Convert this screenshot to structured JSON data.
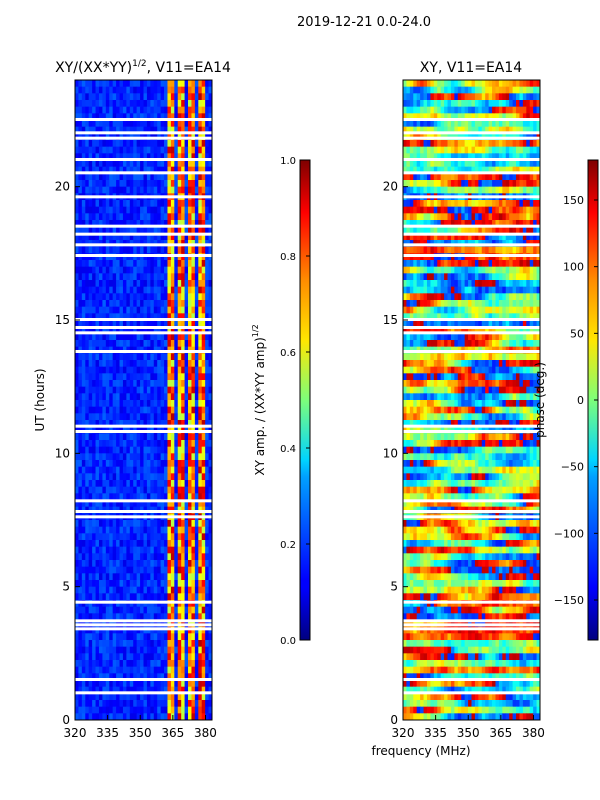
{
  "figure": {
    "suptitle": "2019-12-21 0.0-24.0"
  },
  "chart_data": [
    {
      "type": "heatmap",
      "title_main": "XY/(XX*YY)",
      "title_sup": "1/2",
      "title_rest": ", V11=EA14",
      "ylabel": "UT (hours)",
      "xlabel": "",
      "xlim": [
        320,
        383
      ],
      "ylim": [
        0,
        24
      ],
      "xticks": [
        "320",
        "335",
        "350",
        "365",
        "380"
      ],
      "xtick_values": [
        320,
        335,
        350,
        365,
        380
      ],
      "yticks": [
        "0",
        "5",
        "10",
        "15",
        "20"
      ],
      "ytick_values": [
        0,
        5,
        10,
        15,
        20
      ],
      "colorbar": {
        "label_main": "XY amp. / (XX*YY amp)",
        "label_sup": "1/2",
        "range": [
          0.0,
          1.0
        ],
        "ticks": [
          "0.0",
          "0.2",
          "0.4",
          "0.6",
          "0.8",
          "1.0"
        ],
        "tick_values": [
          0.0,
          0.2,
          0.4,
          0.6,
          0.8,
          1.0
        ]
      }
    },
    {
      "type": "heatmap",
      "title_main": "XY, V11=EA14",
      "xlabel": "frequency (MHz)",
      "xlim": [
        320,
        383
      ],
      "ylim": [
        0,
        24
      ],
      "xticks": [
        "320",
        "335",
        "350",
        "365",
        "380"
      ],
      "xtick_values": [
        320,
        335,
        350,
        365,
        380
      ],
      "yticks": [
        "0",
        "5",
        "10",
        "15",
        "20"
      ],
      "ytick_values": [
        0,
        5,
        10,
        15,
        20
      ],
      "colorbar": {
        "label_main": "phase (deg.)",
        "range": [
          -180,
          180
        ],
        "ticks": [
          "−150",
          "−100",
          "−50",
          "0",
          "50",
          "100",
          "150"
        ],
        "tick_values": [
          -150,
          -100,
          -50,
          0,
          50,
          100,
          150
        ]
      }
    }
  ],
  "flagged_rows_hours": [
    1.0,
    1.5,
    3.4,
    3.55,
    3.7,
    4.4,
    7.6,
    7.8,
    8.2,
    10.8,
    11.0,
    13.8,
    14.5,
    14.7,
    15.0,
    17.4,
    17.8,
    18.2,
    18.5,
    19.6,
    20.5,
    21.0,
    21.8,
    22.0,
    22.5
  ]
}
